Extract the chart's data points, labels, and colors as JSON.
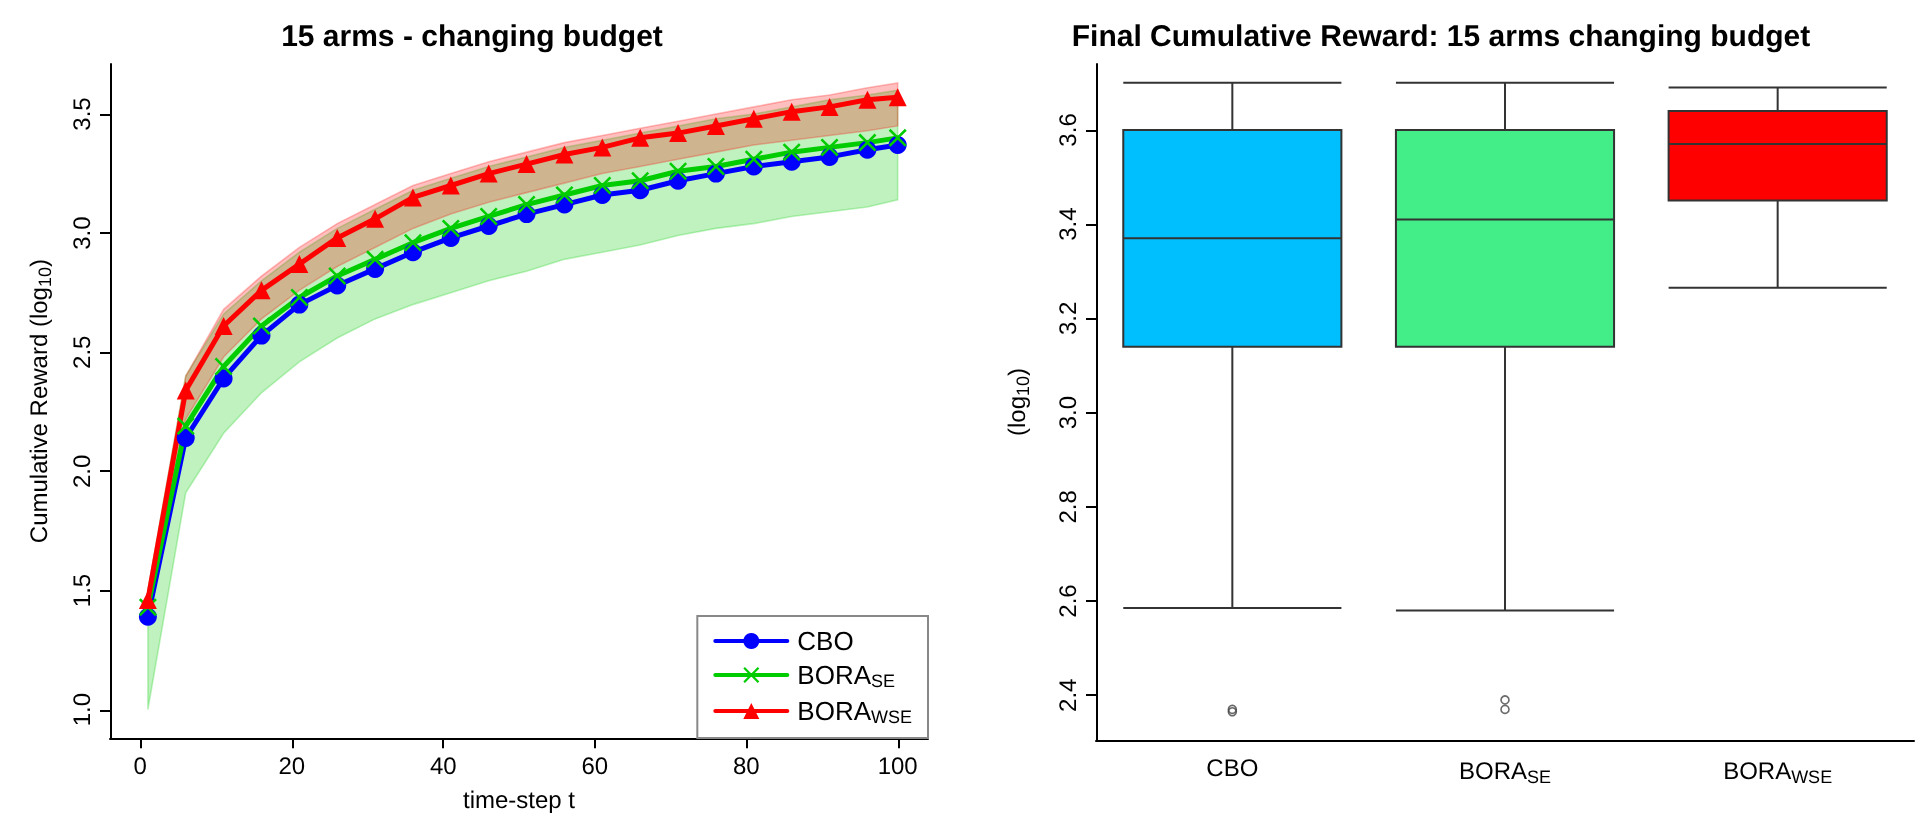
{
  "chart_data": [
    {
      "type": "line",
      "title": "15 arms - changing budget",
      "xlabel": "time-step t",
      "ylabel": "Cumulative Reward (log$_{10}$)",
      "x": [
        1,
        6,
        11,
        16,
        21,
        26,
        31,
        36,
        41,
        46,
        51,
        56,
        61,
        66,
        71,
        76,
        81,
        86,
        91,
        96,
        100
      ],
      "xlim": [
        -4,
        104
      ],
      "xticks": [
        0,
        20,
        40,
        60,
        80,
        100
      ],
      "ylim": [
        0.88,
        3.71
      ],
      "yticks": [
        {
          "value": 1,
          "label": "1.0"
        },
        1.5,
        {
          "value": 2,
          "label": "2.0"
        },
        2.5,
        {
          "value": 3,
          "label": "3.0"
        },
        3.5
      ],
      "legend": "bottom right",
      "series": [
        {
          "name": "CBO",
          "color": "#0000ff",
          "marker": "circle",
          "values": [
            1.39,
            2.14,
            2.39,
            2.57,
            2.7,
            2.78,
            2.85,
            2.92,
            2.98,
            3.03,
            3.08,
            3.12,
            3.16,
            3.18,
            3.22,
            3.25,
            3.28,
            3.3,
            3.32,
            3.35,
            3.37
          ]
        },
        {
          "name": "BORA$_{SE}$",
          "color": "#00cc00",
          "marker": "cross",
          "values": [
            1.43,
            2.19,
            2.44,
            2.61,
            2.73,
            2.82,
            2.89,
            2.96,
            3.02,
            3.07,
            3.12,
            3.16,
            3.2,
            3.22,
            3.26,
            3.28,
            3.31,
            3.34,
            3.36,
            3.38,
            3.4
          ],
          "lower": [
            1.0,
            1.91,
            2.16,
            2.33,
            2.46,
            2.56,
            2.64,
            2.7,
            2.75,
            2.8,
            2.84,
            2.89,
            2.92,
            2.95,
            2.99,
            3.02,
            3.04,
            3.07,
            3.09,
            3.11,
            3.14
          ],
          "upper": [
            1.5,
            2.4,
            2.66,
            2.8,
            2.92,
            3.02,
            3.1,
            3.18,
            3.23,
            3.28,
            3.32,
            3.36,
            3.39,
            3.42,
            3.45,
            3.48,
            3.5,
            3.53,
            3.56,
            3.58,
            3.6
          ]
        },
        {
          "name": "BORA$_{WSE}$",
          "color": "#ff0000",
          "marker": "triangle",
          "values": [
            1.46,
            2.34,
            2.61,
            2.76,
            2.87,
            2.98,
            3.06,
            3.15,
            3.2,
            3.25,
            3.29,
            3.33,
            3.36,
            3.4,
            3.42,
            3.45,
            3.48,
            3.51,
            3.53,
            3.56,
            3.57
          ],
          "lower": [
            1.4,
            2.22,
            2.48,
            2.64,
            2.76,
            2.86,
            2.94,
            3.02,
            3.08,
            3.13,
            3.17,
            3.21,
            3.25,
            3.28,
            3.31,
            3.34,
            3.37,
            3.39,
            3.41,
            3.43,
            3.45
          ],
          "upper": [
            1.5,
            2.4,
            2.68,
            2.82,
            2.94,
            3.04,
            3.12,
            3.2,
            3.25,
            3.3,
            3.34,
            3.38,
            3.41,
            3.44,
            3.47,
            3.5,
            3.53,
            3.56,
            3.58,
            3.61,
            3.63
          ]
        }
      ]
    },
    {
      "type": "box",
      "title": "Final Cumulative Reward: 15 arms changing budget",
      "ylabel": "(log$_{10}$)",
      "categories": [
        "CBO",
        "BORA$_{SE}$",
        "BORA$_{WSE}$"
      ],
      "colors": [
        "#00bfff",
        "#43ee89",
        "#ff0000"
      ],
      "ylim": [
        2.305,
        3.74
      ],
      "yticks": [
        2.4,
        2.6,
        2.8,
        {
          "value": 3,
          "label": "3.0"
        },
        3.2,
        3.4,
        3.6
      ],
      "boxes": [
        {
          "low": 2.585,
          "q1": 3.14,
          "median": 3.37,
          "q3": 3.6,
          "high": 3.7,
          "outliers": [
            2.365,
            2.37
          ]
        },
        {
          "low": 2.58,
          "q1": 3.14,
          "median": 3.41,
          "q3": 3.6,
          "high": 3.7,
          "outliers": [
            2.37,
            2.39
          ]
        },
        {
          "low": 3.265,
          "q1": 3.45,
          "median": 3.57,
          "q3": 3.64,
          "high": 3.69
        }
      ]
    }
  ]
}
